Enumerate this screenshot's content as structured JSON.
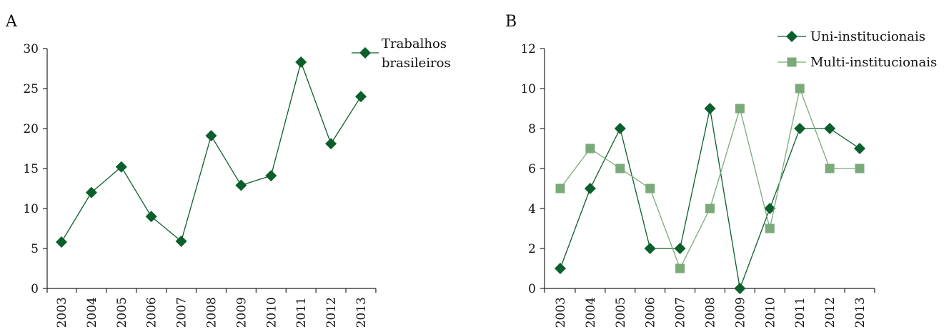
{
  "chart_data": [
    {
      "panel": "A",
      "type": "line",
      "x": [
        "2003",
        "2004",
        "2005",
        "2006",
        "2007",
        "2008",
        "2009",
        "2010",
        "2011",
        "2012",
        "2013"
      ],
      "ylim": [
        0,
        30
      ],
      "yticks": [
        0,
        5,
        10,
        15,
        20,
        25,
        30
      ],
      "grid": false,
      "legend_position": "top-right",
      "series": [
        {
          "name": "Trabalhos brasileiros",
          "legend_lines": [
            "Trabalhos",
            "brasileiros"
          ],
          "marker": "diamond",
          "color": "#0a5f2a",
          "values": [
            5.8,
            12.0,
            15.2,
            9.0,
            5.9,
            19.1,
            12.9,
            14.1,
            28.3,
            18.1,
            24.0
          ]
        }
      ]
    },
    {
      "panel": "B",
      "type": "line",
      "x": [
        "2003",
        "2004",
        "2005",
        "2006",
        "2007",
        "2008",
        "2009",
        "2010",
        "2011",
        "2012",
        "2013"
      ],
      "ylim": [
        0,
        12
      ],
      "yticks": [
        0,
        2,
        4,
        6,
        8,
        10,
        12
      ],
      "grid": false,
      "legend_position": "top-right",
      "series": [
        {
          "name": "Uni-institucionais",
          "legend_lines": [
            "Uni-institucionais"
          ],
          "marker": "diamond",
          "color": "#0a5f2a",
          "values": [
            1,
            5,
            8,
            2,
            2,
            9,
            0,
            4,
            8,
            8,
            7
          ]
        },
        {
          "name": "Multi-institucionais",
          "legend_lines": [
            "Multi-institucionais"
          ],
          "marker": "square",
          "color": "#7aaa7a",
          "values": [
            5,
            7,
            6,
            5,
            1,
            4,
            9,
            3,
            10,
            6,
            6
          ]
        }
      ]
    }
  ]
}
